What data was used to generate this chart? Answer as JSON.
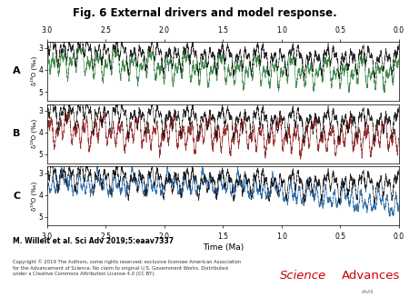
{
  "title": "Fig. 6 External drivers and model response.",
  "title_fontsize": 8.5,
  "panel_labels": [
    "A",
    "B",
    "C"
  ],
  "ylabel": "δ¹⁸O (‰)",
  "xlabel": "Time (Ma)",
  "yticks": [
    3,
    4,
    5
  ],
  "xticks": [
    0,
    0.5,
    1,
    1.5,
    2,
    2.5,
    3
  ],
  "panel_colors": [
    "#2d7d3a",
    "#8b1a1a",
    "#2060a0"
  ],
  "citation": "M. Willeit et al. Sci Adv 2019;5:eaav7337",
  "copyright_line1": "Copyright © 2019 The Authors, some rights reserved; exclusive licensee American Association",
  "copyright_line2": "for the Advancement of Science. No claim to original U.S. Government Works. Distributed",
  "copyright_line3": "under a Creative Commons Attribution License 4.0 (CC BY).",
  "background_color": "#ffffff"
}
